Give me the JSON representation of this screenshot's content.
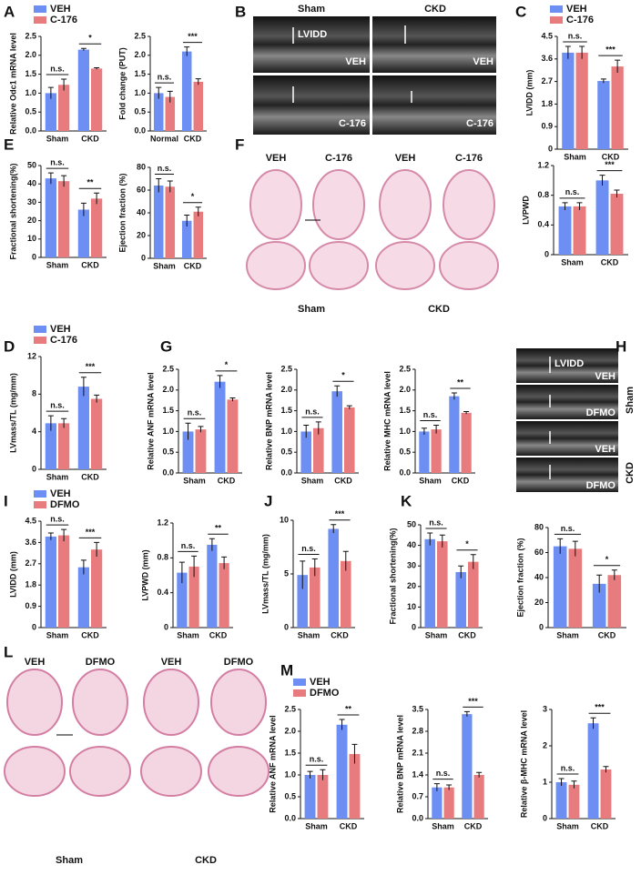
{
  "figure": {
    "panel_letters": [
      "A",
      "B",
      "C",
      "E",
      "F",
      "D",
      "G",
      "H",
      "I",
      "J",
      "K",
      "L",
      "M"
    ],
    "echo_B": {
      "columns": [
        "Sham",
        "CKD"
      ],
      "labels": [
        "LVIDD",
        "VEH",
        "VEH",
        "C-176",
        "C-176"
      ]
    },
    "histo_F": {
      "columns": [
        "VEH",
        "C-176",
        "VEH",
        "C-176"
      ],
      "groups": [
        "Sham",
        "CKD"
      ]
    },
    "echo_H": {
      "rows": [
        "Sham",
        "CKD"
      ],
      "labels": [
        "LVIDD",
        "VEH",
        "DFMO",
        "VEH",
        "DFMO"
      ]
    },
    "histo_L": {
      "columns": [
        "VEH",
        "DFMO",
        "VEH",
        "DFMO"
      ],
      "groups": [
        "Sham",
        "CKD"
      ]
    }
  },
  "chart_data": [
    {
      "type": "bar",
      "y_label": "Relative Odc1 mRNA level",
      "categories": [
        "Sham",
        "CKD"
      ],
      "ylim": [
        0,
        2.5
      ],
      "yticks": [
        {
          "value": 0,
          "label": "0.0"
        },
        0.5,
        {
          "value": 1,
          "label": "1.0"
        },
        1.5,
        {
          "value": 2,
          "label": "2.0"
        },
        2.5
      ],
      "series": [
        {
          "name": "VEH",
          "color": "#6d8ff4",
          "values": [
            1.0,
            2.15
          ],
          "errors": [
            0.15,
            0.03
          ]
        },
        {
          "name": "C-176",
          "color": "#e87b7d",
          "values": [
            1.22,
            1.65
          ],
          "errors": [
            0.15,
            0.02
          ]
        }
      ],
      "significance": [
        "n.s.",
        "*"
      ]
    },
    {
      "type": "bar",
      "y_label": "Fold change (PUT)",
      "categories": [
        "Normal",
        "CKD"
      ],
      "ylim": [
        0,
        2.5
      ],
      "yticks": [
        {
          "value": 0,
          "label": "0.0"
        },
        0.5,
        {
          "value": 1,
          "label": "1.0"
        },
        1.5,
        {
          "value": 2,
          "label": "2.0"
        },
        2.5
      ],
      "series": [
        {
          "color": "#6d8ff4",
          "values": [
            1.0,
            2.1
          ],
          "errors": [
            0.15,
            0.12
          ]
        },
        {
          "color": "#e87b7d",
          "values": [
            0.9,
            1.3
          ],
          "errors": [
            0.15,
            0.08
          ]
        }
      ],
      "significance": [
        "n.s.",
        "***"
      ]
    },
    {
      "type": "bar",
      "y_label": "LVIDD (mm)",
      "categories": [
        "Sham",
        "CKD"
      ],
      "ylim": [
        0,
        4.5
      ],
      "yticks": [
        0,
        0.9,
        1.8,
        2.7,
        3.6,
        4.5
      ],
      "series": [
        {
          "name": "VEH",
          "color": "#6d8ff4",
          "values": [
            3.85,
            2.72
          ],
          "errors": [
            0.25,
            0.08
          ]
        },
        {
          "name": "C-176",
          "color": "#e87b7d",
          "values": [
            3.85,
            3.3
          ],
          "errors": [
            0.25,
            0.25
          ]
        }
      ],
      "significance": [
        "n.s.",
        "***"
      ]
    },
    {
      "type": "bar",
      "y_label": "LVPWD",
      "categories": [
        "Sham",
        "CKD"
      ],
      "ylim": [
        0,
        1.2
      ],
      "yticks": [
        0,
        0.4,
        0.8,
        1.2
      ],
      "series": [
        {
          "color": "#6d8ff4",
          "values": [
            0.65,
            1.0
          ],
          "errors": [
            0.05,
            0.07
          ]
        },
        {
          "color": "#e87b7d",
          "values": [
            0.65,
            0.82
          ],
          "errors": [
            0.05,
            0.05
          ]
        }
      ],
      "significance": [
        "n.s.",
        "***"
      ]
    },
    {
      "type": "bar",
      "y_label": "Fractional shortening(%)",
      "categories": [
        "Sham",
        "CKD"
      ],
      "ylim": [
        0,
        50
      ],
      "yticks": [
        0,
        10,
        20,
        30,
        40,
        50
      ],
      "series": [
        {
          "color": "#6d8ff4",
          "values": [
            43,
            26
          ],
          "errors": [
            3,
            3.5
          ]
        },
        {
          "color": "#e87b7d",
          "values": [
            41.5,
            32
          ],
          "errors": [
            3,
            3
          ]
        }
      ],
      "significance": [
        "n.s.",
        "**"
      ]
    },
    {
      "type": "bar",
      "y_label": "Ejection fraction (%)",
      "categories": [
        "Sham",
        "CKD"
      ],
      "ylim": [
        0,
        80
      ],
      "yticks": [
        0,
        20,
        40,
        60,
        80
      ],
      "series": [
        {
          "color": "#6d8ff4",
          "values": [
            64,
            33
          ],
          "errors": [
            6,
            5
          ]
        },
        {
          "color": "#e87b7d",
          "values": [
            63,
            41
          ],
          "errors": [
            5,
            4
          ]
        }
      ],
      "significance": [
        "n.s.",
        "*"
      ]
    },
    {
      "type": "bar",
      "y_label": "LVmass/TL (mg/mm)",
      "categories": [
        "Sham",
        "CKD"
      ],
      "ylim": [
        0,
        12
      ],
      "yticks": [
        0,
        4,
        8,
        12
      ],
      "series": [
        {
          "name": "VEH",
          "color": "#6d8ff4",
          "values": [
            4.9,
            8.8
          ],
          "errors": [
            0.8,
            1.0
          ]
        },
        {
          "name": "C-176",
          "color": "#e87b7d",
          "values": [
            4.9,
            7.5
          ],
          "errors": [
            0.5,
            0.4
          ]
        }
      ],
      "significance": [
        "n.s.",
        "***"
      ]
    },
    {
      "type": "bar",
      "y_label": "Relative ANF mRNA level",
      "categories": [
        "Sham",
        "CKD"
      ],
      "ylim": [
        0,
        2.5
      ],
      "yticks": [
        {
          "value": 0,
          "label": "0.0"
        },
        0.5,
        {
          "value": 1,
          "label": "1.0"
        },
        1.5,
        {
          "value": 2,
          "label": "2.0"
        },
        2.5
      ],
      "series": [
        {
          "color": "#6d8ff4",
          "values": [
            1.0,
            2.2
          ],
          "errors": [
            0.2,
            0.15
          ]
        },
        {
          "color": "#e87b7d",
          "values": [
            1.05,
            1.77
          ],
          "errors": [
            0.07,
            0.04
          ]
        }
      ],
      "significance": [
        "n.s.",
        "*"
      ]
    },
    {
      "type": "bar",
      "y_label": "Relative BNP mRNA level",
      "categories": [
        "Sham",
        "CKD"
      ],
      "ylim": [
        0,
        2.5
      ],
      "yticks": [
        {
          "value": 0,
          "label": "0.0"
        },
        0.5,
        {
          "value": 1,
          "label": "1.0"
        },
        1.5,
        {
          "value": 2,
          "label": "2.0"
        },
        2.5
      ],
      "series": [
        {
          "color": "#6d8ff4",
          "values": [
            1.0,
            1.97
          ],
          "errors": [
            0.15,
            0.13
          ]
        },
        {
          "color": "#e87b7d",
          "values": [
            1.08,
            1.58
          ],
          "errors": [
            0.15,
            0.04
          ]
        }
      ],
      "significance": [
        "n.s.",
        "*"
      ]
    },
    {
      "type": "bar",
      "y_label": "Relative MHC mRNA level",
      "categories": [
        "Sham",
        "CKD"
      ],
      "ylim": [
        0,
        2.5
      ],
      "yticks": [
        {
          "value": 0,
          "label": "0.0"
        },
        0.5,
        {
          "value": 1,
          "label": "1.0"
        },
        1.5,
        {
          "value": 2,
          "label": "2.0"
        },
        2.5
      ],
      "series": [
        {
          "color": "#6d8ff4",
          "values": [
            1.0,
            1.85
          ],
          "errors": [
            0.08,
            0.08
          ]
        },
        {
          "color": "#e87b7d",
          "values": [
            1.05,
            1.45
          ],
          "errors": [
            0.1,
            0.03
          ]
        }
      ],
      "significance": [
        "n.s.",
        "**"
      ]
    },
    {
      "type": "bar",
      "y_label": "LVIDD (mm)",
      "categories": [
        "Sham",
        "CKD"
      ],
      "ylim": [
        0,
        4.5
      ],
      "yticks": [
        0,
        0.9,
        1.8,
        2.7,
        3.6,
        4.5
      ],
      "series": [
        {
          "name": "VEH",
          "color": "#6d8ff4",
          "values": [
            3.85,
            2.55
          ],
          "errors": [
            0.15,
            0.3
          ]
        },
        {
          "name": "DFMO",
          "color": "#e87b7d",
          "values": [
            3.9,
            3.3
          ],
          "errors": [
            0.25,
            0.3
          ]
        }
      ],
      "significance": [
        "n.s.",
        "***"
      ]
    },
    {
      "type": "bar",
      "y_label": "LVPWD (mm)",
      "categories": [
        "Sham",
        "CKD"
      ],
      "ylim": [
        0,
        1.2
      ],
      "yticks": [
        0,
        0.4,
        0.8,
        1.2
      ],
      "series": [
        {
          "color": "#6d8ff4",
          "values": [
            0.63,
            0.95
          ],
          "errors": [
            0.12,
            0.07
          ]
        },
        {
          "color": "#e87b7d",
          "values": [
            0.7,
            0.74
          ],
          "errors": [
            0.12,
            0.07
          ]
        }
      ],
      "significance": [
        "n.s.",
        "**"
      ]
    },
    {
      "type": "bar",
      "y_label": "LVmass/TL (mg/mm)",
      "categories": [
        "Sham",
        "CKD"
      ],
      "ylim": [
        0,
        10
      ],
      "yticks": [
        0,
        5,
        10
      ],
      "series": [
        {
          "color": "#6d8ff4",
          "values": [
            4.9,
            9.2
          ],
          "errors": [
            1.3,
            0.4
          ]
        },
        {
          "color": "#e87b7d",
          "values": [
            5.6,
            6.2
          ],
          "errors": [
            0.8,
            0.9
          ]
        }
      ],
      "significance": [
        "n.s.",
        "***"
      ]
    },
    {
      "type": "bar",
      "y_label": "Fractional shortening(%)",
      "categories": [
        "Sham",
        "CKD"
      ],
      "ylim": [
        0,
        50
      ],
      "yticks": [
        0,
        10,
        20,
        30,
        40,
        50
      ],
      "series": [
        {
          "color": "#6d8ff4",
          "values": [
            43,
            27
          ],
          "errors": [
            3,
            3
          ]
        },
        {
          "color": "#e87b7d",
          "values": [
            42,
            32
          ],
          "errors": [
            3,
            3.5
          ]
        }
      ],
      "significance": [
        "n.s.",
        "*"
      ]
    },
    {
      "type": "bar",
      "y_label": "Ejection fraction (%)",
      "categories": [
        "Sham",
        "CKD"
      ],
      "ylim": [
        0,
        80
      ],
      "yticks": [
        0,
        20,
        40,
        60,
        80
      ],
      "series": [
        {
          "color": "#6d8ff4",
          "values": [
            65,
            35
          ],
          "errors": [
            6,
            7
          ]
        },
        {
          "color": "#e87b7d",
          "values": [
            63,
            42
          ],
          "errors": [
            6,
            4
          ]
        }
      ],
      "significance": [
        "n.s.",
        "*"
      ]
    },
    {
      "type": "bar",
      "y_label": "Relative ANF mRNA level",
      "categories": [
        "Sham",
        "CKD"
      ],
      "ylim": [
        0,
        2.5
      ],
      "yticks": [
        {
          "value": 0,
          "label": "0.0"
        },
        0.5,
        {
          "value": 1,
          "label": "1.0"
        },
        1.5,
        {
          "value": 2,
          "label": "2.0"
        },
        2.5
      ],
      "series": [
        {
          "name": "VEH",
          "color": "#6d8ff4",
          "values": [
            1.0,
            2.15
          ],
          "errors": [
            0.08,
            0.12
          ]
        },
        {
          "name": "DFMO",
          "color": "#e87b7d",
          "values": [
            1.0,
            1.48
          ],
          "errors": [
            0.12,
            0.22
          ]
        }
      ],
      "significance": [
        "n.s.",
        "**"
      ]
    },
    {
      "type": "bar",
      "y_label": "Relative BNP mRNA level",
      "categories": [
        "Sham",
        "CKD"
      ],
      "ylim": [
        0,
        3.5
      ],
      "yticks": [
        {
          "value": 0,
          "label": "0.0"
        },
        0.7,
        1.4,
        2.1,
        2.8,
        3.5
      ],
      "series": [
        {
          "color": "#6d8ff4",
          "values": [
            1.0,
            3.35
          ],
          "errors": [
            0.12,
            0.08
          ]
        },
        {
          "color": "#e87b7d",
          "values": [
            1.0,
            1.4
          ],
          "errors": [
            0.08,
            0.08
          ]
        }
      ],
      "significance": [
        "n.s.",
        "***"
      ]
    },
    {
      "type": "bar",
      "y_label": "Relative β-MHC mRNA level",
      "categories": [
        "Sham",
        "CKD"
      ],
      "ylim": [
        0,
        3
      ],
      "yticks": [
        0,
        1,
        2,
        3
      ],
      "series": [
        {
          "color": "#6d8ff4",
          "values": [
            1.0,
            2.62
          ],
          "errors": [
            0.1,
            0.15
          ]
        },
        {
          "color": "#e87b7d",
          "values": [
            0.93,
            1.35
          ],
          "errors": [
            0.1,
            0.08
          ]
        }
      ],
      "significance": [
        "n.s.",
        "***"
      ]
    }
  ]
}
